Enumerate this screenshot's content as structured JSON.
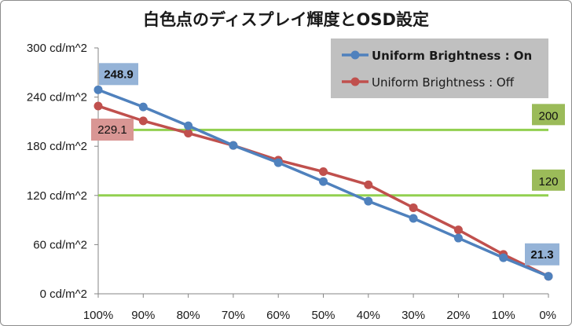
{
  "chart_data": {
    "type": "line",
    "title": "白色点のディスプレイ輝度とOSD設定",
    "categories": [
      "100%",
      "90%",
      "80%",
      "70%",
      "60%",
      "50%",
      "40%",
      "30%",
      "20%",
      "10%",
      "0%"
    ],
    "ylim": [
      0,
      300
    ],
    "yticks": [
      0,
      60,
      120,
      180,
      240,
      300
    ],
    "ytick_labels": [
      "0 cd/m^2",
      "60 cd/m^2",
      "120 cd/m^2",
      "180 cd/m^2",
      "240 cd/m^2",
      "300 cd/m^2"
    ],
    "xlabel": "",
    "ylabel": "",
    "grid": false,
    "legend_position": "top-right",
    "series": [
      {
        "name": "Uniform Brightness : On",
        "color": "#4f81bd",
        "bold": true,
        "values": [
          248.9,
          228,
          205,
          181,
          160,
          137,
          113,
          92,
          68,
          44,
          21.3
        ]
      },
      {
        "name": "Uniform Brightness : Off",
        "color": "#c0504d",
        "bold": false,
        "values": [
          229.1,
          211,
          196,
          181,
          163,
          149,
          133,
          105,
          78,
          48,
          21.3
        ]
      }
    ],
    "reference_lines": [
      {
        "value": 200,
        "label": "200",
        "color": "#92d050",
        "label_bg": "#9bbb59"
      },
      {
        "value": 120,
        "label": "120",
        "color": "#92d050",
        "label_bg": "#9bbb59"
      }
    ],
    "annotations": [
      {
        "text": "248.9",
        "series": 0,
        "index": 0,
        "bg": "#95b3d7",
        "bold": true
      },
      {
        "text": "229.1",
        "series": 1,
        "index": 0,
        "bg": "#d99694",
        "bold": false
      },
      {
        "text": "21.3",
        "series": 0,
        "index": 10,
        "bg": "#95b3d7",
        "bold": true
      }
    ]
  }
}
